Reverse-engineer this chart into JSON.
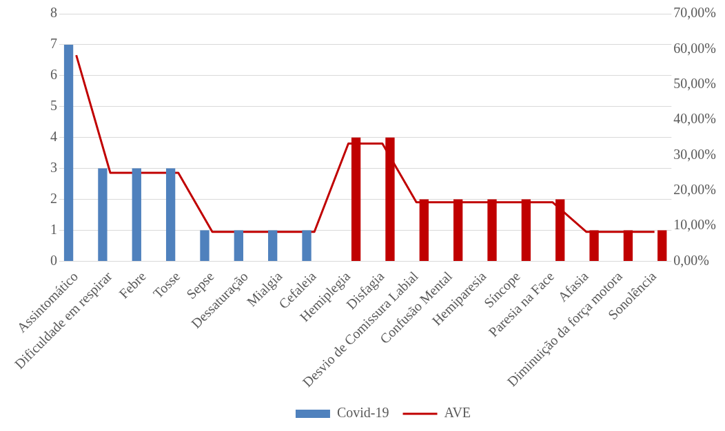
{
  "chart_data": {
    "type": "bar",
    "categories": [
      "Assintomático",
      "Dificuldade em respirar",
      "Febre",
      "Tosse",
      "Sepse",
      "Dessaturação",
      "Mialgia",
      "Cefaleia",
      "Hemiplegia",
      "Disfagia",
      "Desvio de Comissura Labial",
      "Confusão Mental",
      "Hemiparesia",
      "Síncope",
      "Paresia na Face",
      "Afasia",
      "Diminuição da força motora",
      "Sonolência"
    ],
    "series": [
      {
        "name": "Covid-19",
        "color": "#4f81bd",
        "values": [
          7,
          3,
          3,
          3,
          1,
          1,
          1,
          1,
          null,
          null,
          null,
          null,
          null,
          null,
          null,
          null,
          null,
          null
        ]
      },
      {
        "color": "#c00000",
        "values": [
          null,
          null,
          null,
          null,
          null,
          null,
          null,
          null,
          4,
          4,
          2,
          2,
          2,
          2,
          2,
          1,
          1,
          1
        ]
      },
      {
        "name": "AVE",
        "type": "line",
        "axis": "y2",
        "color": "#c00000",
        "marker": "none",
        "values": [
          58.3,
          25,
          25,
          25,
          8.3,
          8.3,
          8.3,
          8.3,
          33.3,
          33.3,
          16.7,
          16.7,
          16.7,
          16.7,
          16.7,
          8.3,
          8.3,
          8.3
        ]
      }
    ],
    "ylim": [
      0,
      8
    ],
    "yticks": [
      0,
      1,
      2,
      3,
      4,
      5,
      6,
      7,
      8
    ],
    "y2lim": [
      0,
      70
    ],
    "y2ticks": [
      {
        "value": 0,
        "label": "0,00%"
      },
      {
        "value": 10,
        "label": "10,00%"
      },
      {
        "value": 20,
        "label": "20,00%"
      },
      {
        "value": 30,
        "label": "30,00%"
      },
      {
        "value": 40,
        "label": "40,00%"
      },
      {
        "value": 50,
        "label": "50,00%"
      },
      {
        "value": 60,
        "label": "60,00%"
      },
      {
        "value": 70,
        "label": "70,00%"
      }
    ],
    "grid": "y",
    "legend": "bottom"
  }
}
